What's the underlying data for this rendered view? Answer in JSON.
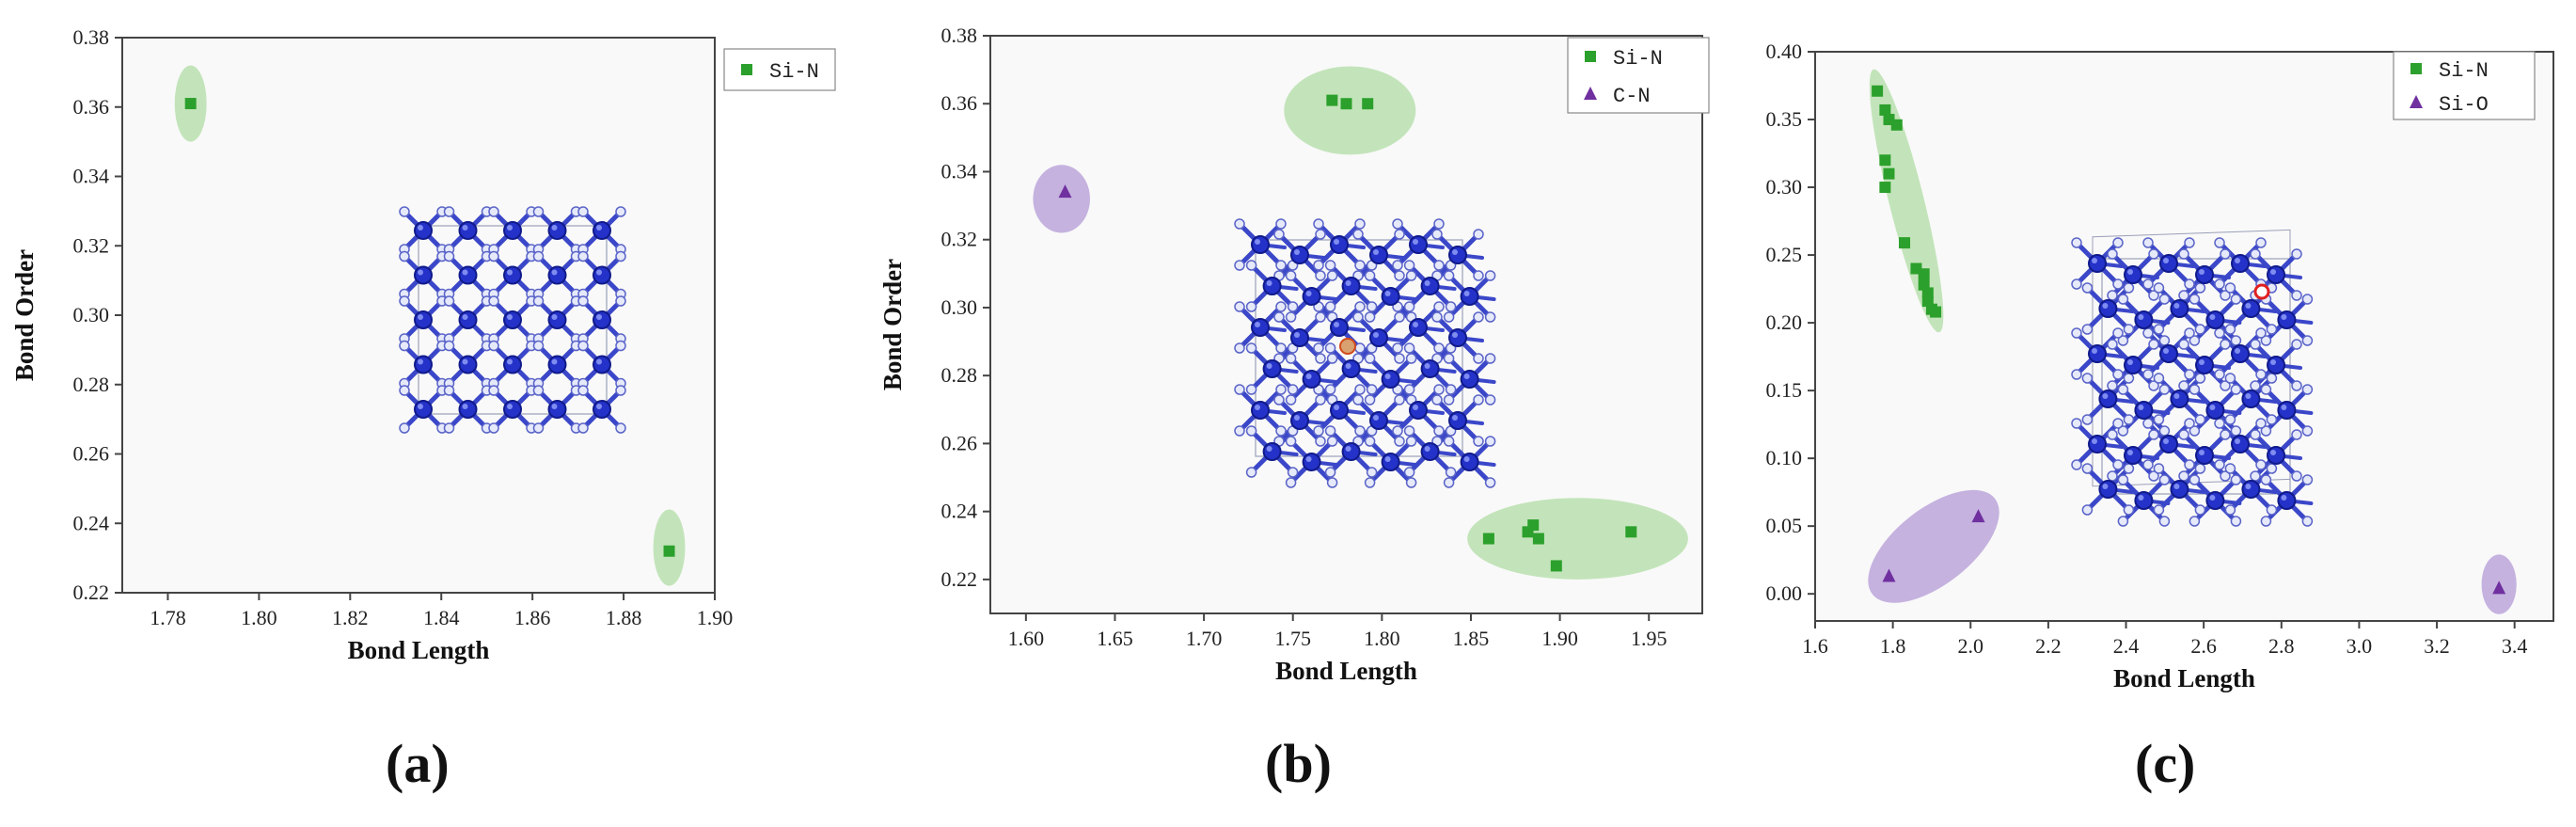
{
  "colors": {
    "square_series": "#2ca02c",
    "triangle_series": "#7030a0",
    "ellipse_green": "#9ed68f",
    "ellipse_purple": "#b39ad6",
    "atom_si": "#2432c9",
    "atom_n": "#aeb6e8",
    "plot_bg": "#f9f9f9",
    "defect_atom": "#d24a1c"
  },
  "chart_data": [
    {
      "type": "scatter",
      "panel_label": "(a)",
      "xlabel": "Bond Length",
      "ylabel": "Bond Order",
      "xlim": [
        1.77,
        1.9
      ],
      "ylim": [
        0.22,
        0.38
      ],
      "xticks": [
        "1.78",
        "1.80",
        "1.82",
        "1.84",
        "1.86",
        "1.88",
        "1.90"
      ],
      "yticks": [
        "0.22",
        "0.24",
        "0.26",
        "0.28",
        "0.30",
        "0.32",
        "0.34",
        "0.36",
        "0.38"
      ],
      "series": [
        {
          "name": "Si-N",
          "marker": "square",
          "points": [
            [
              1.785,
              0.361
            ],
            [
              1.89,
              0.232
            ]
          ]
        }
      ],
      "highlight_ellipses": [
        {
          "color": "green",
          "center": [
            1.785,
            0.361
          ],
          "rx": 0.0035,
          "ry": 0.011,
          "angle": 0
        },
        {
          "color": "green",
          "center": [
            1.89,
            0.233
          ],
          "rx": 0.0035,
          "ry": 0.011,
          "angle": 0
        }
      ],
      "legend": "top-right",
      "inset": "crystal-structure"
    },
    {
      "type": "scatter",
      "panel_label": "(b)",
      "xlabel": "Bond Length",
      "ylabel": "Bond Order",
      "xlim": [
        1.58,
        1.98
      ],
      "ylim": [
        0.21,
        0.38
      ],
      "xticks": [
        "1.60",
        "1.65",
        "1.70",
        "1.75",
        "1.80",
        "1.85",
        "1.90",
        "1.95"
      ],
      "yticks": [
        "0.22",
        "0.24",
        "0.26",
        "0.28",
        "0.30",
        "0.32",
        "0.34",
        "0.36",
        "0.38"
      ],
      "series": [
        {
          "name": "Si-N",
          "marker": "square",
          "points": [
            [
              1.772,
              0.361
            ],
            [
              1.78,
              0.36
            ],
            [
              1.792,
              0.36
            ],
            [
              1.86,
              0.232
            ],
            [
              1.882,
              0.234
            ],
            [
              1.885,
              0.236
            ],
            [
              1.888,
              0.232
            ],
            [
              1.898,
              0.224
            ],
            [
              1.94,
              0.234
            ]
          ]
        },
        {
          "name": "C-N",
          "marker": "triangle",
          "points": [
            [
              1.622,
              0.334
            ]
          ]
        }
      ],
      "highlight_ellipses": [
        {
          "color": "green",
          "center": [
            1.782,
            0.358
          ],
          "rx": 0.037,
          "ry": 0.013,
          "angle": 0
        },
        {
          "color": "green",
          "center": [
            1.91,
            0.232
          ],
          "rx": 0.062,
          "ry": 0.012,
          "angle": 0
        },
        {
          "color": "purple",
          "center": [
            1.62,
            0.332
          ],
          "rx": 0.016,
          "ry": 0.01,
          "angle": 0
        }
      ],
      "legend": "top-right",
      "inset": "crystal-structure"
    },
    {
      "type": "scatter",
      "panel_label": "(c)",
      "xlabel": "Bond Length",
      "ylabel": "Bond Order",
      "xlim": [
        1.6,
        3.5
      ],
      "ylim": [
        -0.02,
        0.4
      ],
      "xticks": [
        "1.6",
        "1.8",
        "2.0",
        "2.2",
        "2.4",
        "2.6",
        "2.8",
        "3.0",
        "3.2",
        "3.4"
      ],
      "yticks": [
        "0.00",
        "0.05",
        "0.10",
        "0.15",
        "0.20",
        "0.25",
        "0.30",
        "0.35",
        "0.40"
      ],
      "series": [
        {
          "name": "Si-N",
          "marker": "square",
          "points": [
            [
              1.76,
              0.371
            ],
            [
              1.78,
              0.357
            ],
            [
              1.79,
              0.35
            ],
            [
              1.81,
              0.346
            ],
            [
              1.78,
              0.32
            ],
            [
              1.79,
              0.31
            ],
            [
              1.78,
              0.3
            ],
            [
              1.83,
              0.259
            ],
            [
              1.86,
              0.24
            ],
            [
              1.88,
              0.236
            ],
            [
              1.88,
              0.228
            ],
            [
              1.89,
              0.222
            ],
            [
              1.89,
              0.216
            ],
            [
              1.9,
              0.21
            ],
            [
              1.91,
              0.208
            ]
          ]
        },
        {
          "name": "Si-O",
          "marker": "triangle",
          "points": [
            [
              1.79,
              0.013
            ],
            [
              2.02,
              0.057
            ],
            [
              3.36,
              0.004
            ]
          ]
        }
      ],
      "highlight_ellipses": [
        {
          "color": "green",
          "center": [
            1.835,
            0.29
          ],
          "rx": 0.045,
          "ry": 0.1,
          "angle": -14
        },
        {
          "color": "purple",
          "center": [
            1.905,
            0.035
          ],
          "rx": 0.2,
          "ry": 0.028,
          "angle": -38
        },
        {
          "color": "purple",
          "center": [
            3.36,
            0.007
          ],
          "rx": 0.045,
          "ry": 0.022,
          "angle": 0
        }
      ],
      "legend": "top-right",
      "inset": "crystal-structure-with-oxygen-defect"
    }
  ]
}
